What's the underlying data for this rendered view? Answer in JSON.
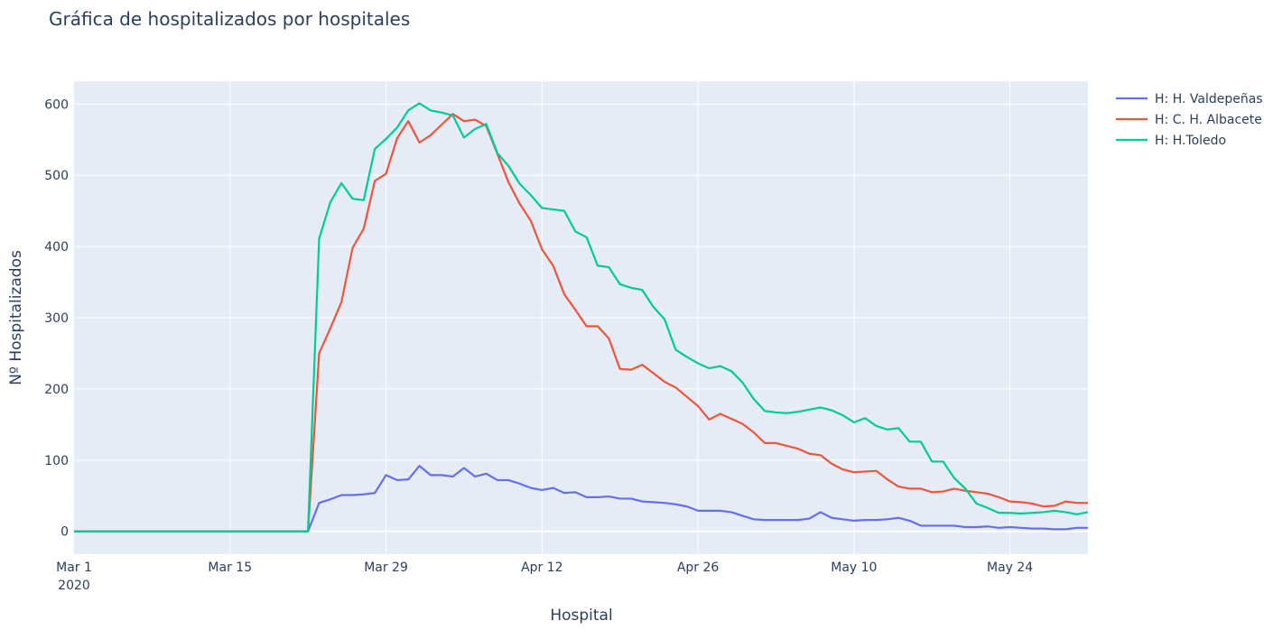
{
  "chart_data": {
    "type": "line",
    "title": "Gráfica de hospitalizados por hospitales",
    "xlabel": "Hospital",
    "ylabel": "Nº Hospitalizados",
    "x_start": "2020-03-01",
    "x_end": "2020-05-31",
    "xlim": [
      "2020-03-01",
      "2020-05-31"
    ],
    "ylim": [
      -32,
      632
    ],
    "x_ticks": [
      {
        "date": "2020-03-01",
        "label": "Mar 1",
        "sublabel": "2020"
      },
      {
        "date": "2020-03-15",
        "label": "Mar 15",
        "sublabel": ""
      },
      {
        "date": "2020-03-29",
        "label": "Mar 29",
        "sublabel": ""
      },
      {
        "date": "2020-04-12",
        "label": "Apr 12",
        "sublabel": ""
      },
      {
        "date": "2020-04-26",
        "label": "Apr 26",
        "sublabel": ""
      },
      {
        "date": "2020-05-10",
        "label": "May 10",
        "sublabel": ""
      },
      {
        "date": "2020-05-24",
        "label": "May 24",
        "sublabel": ""
      }
    ],
    "y_ticks": [
      0,
      100,
      200,
      300,
      400,
      500,
      600
    ],
    "grid": true,
    "legend_position": "top-right",
    "series": [
      {
        "name": "H: H. Valdepeñas",
        "color": "#636efa",
        "points": [
          [
            "2020-03-01",
            0
          ],
          [
            "2020-03-22",
            0
          ],
          [
            "2020-03-23",
            40
          ],
          [
            "2020-03-24",
            45
          ],
          [
            "2020-03-25",
            51
          ],
          [
            "2020-03-26",
            51
          ],
          [
            "2020-03-27",
            52
          ],
          [
            "2020-03-28",
            54
          ],
          [
            "2020-03-29",
            79
          ],
          [
            "2020-03-30",
            72
          ],
          [
            "2020-03-31",
            73
          ],
          [
            "2020-04-01",
            92
          ],
          [
            "2020-04-02",
            79
          ],
          [
            "2020-04-03",
            79
          ],
          [
            "2020-04-04",
            77
          ],
          [
            "2020-04-05",
            89
          ],
          [
            "2020-04-06",
            77
          ],
          [
            "2020-04-07",
            81
          ],
          [
            "2020-04-08",
            72
          ],
          [
            "2020-04-09",
            72
          ],
          [
            "2020-04-10",
            67
          ],
          [
            "2020-04-11",
            61
          ],
          [
            "2020-04-12",
            58
          ],
          [
            "2020-04-13",
            61
          ],
          [
            "2020-04-14",
            54
          ],
          [
            "2020-04-15",
            55
          ],
          [
            "2020-04-16",
            48
          ],
          [
            "2020-04-17",
            48
          ],
          [
            "2020-04-18",
            49
          ],
          [
            "2020-04-19",
            46
          ],
          [
            "2020-04-20",
            46
          ],
          [
            "2020-04-21",
            42
          ],
          [
            "2020-04-22",
            41
          ],
          [
            "2020-04-23",
            40
          ],
          [
            "2020-04-24",
            38
          ],
          [
            "2020-04-25",
            35
          ],
          [
            "2020-04-26",
            29
          ],
          [
            "2020-04-27",
            29
          ],
          [
            "2020-04-28",
            29
          ],
          [
            "2020-04-29",
            27
          ],
          [
            "2020-04-30",
            22
          ],
          [
            "2020-05-01",
            17
          ],
          [
            "2020-05-02",
            16
          ],
          [
            "2020-05-03",
            16
          ],
          [
            "2020-05-04",
            16
          ],
          [
            "2020-05-05",
            16
          ],
          [
            "2020-05-06",
            18
          ],
          [
            "2020-05-07",
            27
          ],
          [
            "2020-05-08",
            19
          ],
          [
            "2020-05-09",
            17
          ],
          [
            "2020-05-10",
            15
          ],
          [
            "2020-05-11",
            16
          ],
          [
            "2020-05-12",
            16
          ],
          [
            "2020-05-13",
            17
          ],
          [
            "2020-05-14",
            19
          ],
          [
            "2020-05-15",
            15
          ],
          [
            "2020-05-16",
            8
          ],
          [
            "2020-05-17",
            8
          ],
          [
            "2020-05-18",
            8
          ],
          [
            "2020-05-19",
            8
          ],
          [
            "2020-05-20",
            6
          ],
          [
            "2020-05-21",
            6
          ],
          [
            "2020-05-22",
            7
          ],
          [
            "2020-05-23",
            5
          ],
          [
            "2020-05-24",
            6
          ],
          [
            "2020-05-25",
            5
          ],
          [
            "2020-05-26",
            4
          ],
          [
            "2020-05-27",
            4
          ],
          [
            "2020-05-28",
            3
          ],
          [
            "2020-05-29",
            3
          ],
          [
            "2020-05-30",
            5
          ],
          [
            "2020-05-31",
            5
          ]
        ]
      },
      {
        "name": "H: C. H. Albacete",
        "color": "#ef553b",
        "points": [
          [
            "2020-03-01",
            0
          ],
          [
            "2020-03-22",
            0
          ],
          [
            "2020-03-23",
            250
          ],
          [
            "2020-03-24",
            285
          ],
          [
            "2020-03-25",
            322
          ],
          [
            "2020-03-26",
            398
          ],
          [
            "2020-03-27",
            425
          ],
          [
            "2020-03-28",
            492
          ],
          [
            "2020-03-29",
            502
          ],
          [
            "2020-03-30",
            552
          ],
          [
            "2020-03-31",
            576
          ],
          [
            "2020-04-01",
            546
          ],
          [
            "2020-04-02",
            556
          ],
          [
            "2020-04-03",
            571
          ],
          [
            "2020-04-04",
            586
          ],
          [
            "2020-04-05",
            576
          ],
          [
            "2020-04-06",
            578
          ],
          [
            "2020-04-07",
            569
          ],
          [
            "2020-04-08",
            530
          ],
          [
            "2020-04-09",
            490
          ],
          [
            "2020-04-10",
            460
          ],
          [
            "2020-04-11",
            436
          ],
          [
            "2020-04-12",
            396
          ],
          [
            "2020-04-13",
            373
          ],
          [
            "2020-04-14",
            333
          ],
          [
            "2020-04-15",
            311
          ],
          [
            "2020-04-16",
            288
          ],
          [
            "2020-04-17",
            288
          ],
          [
            "2020-04-18",
            271
          ],
          [
            "2020-04-19",
            228
          ],
          [
            "2020-04-20",
            227
          ],
          [
            "2020-04-21",
            234
          ],
          [
            "2020-04-22",
            222
          ],
          [
            "2020-04-23",
            210
          ],
          [
            "2020-04-24",
            202
          ],
          [
            "2020-04-25",
            189
          ],
          [
            "2020-04-26",
            176
          ],
          [
            "2020-04-27",
            157
          ],
          [
            "2020-04-28",
            165
          ],
          [
            "2020-04-29",
            158
          ],
          [
            "2020-04-30",
            151
          ],
          [
            "2020-05-01",
            139
          ],
          [
            "2020-05-02",
            124
          ],
          [
            "2020-05-03",
            124
          ],
          [
            "2020-05-04",
            120
          ],
          [
            "2020-05-05",
            116
          ],
          [
            "2020-05-06",
            109
          ],
          [
            "2020-05-07",
            107
          ],
          [
            "2020-05-08",
            95
          ],
          [
            "2020-05-09",
            87
          ],
          [
            "2020-05-10",
            83
          ],
          [
            "2020-05-11",
            84
          ],
          [
            "2020-05-12",
            85
          ],
          [
            "2020-05-13",
            73
          ],
          [
            "2020-05-14",
            63
          ],
          [
            "2020-05-15",
            60
          ],
          [
            "2020-05-16",
            60
          ],
          [
            "2020-05-17",
            55
          ],
          [
            "2020-05-18",
            56
          ],
          [
            "2020-05-19",
            60
          ],
          [
            "2020-05-20",
            57
          ],
          [
            "2020-05-21",
            55
          ],
          [
            "2020-05-22",
            53
          ],
          [
            "2020-05-23",
            48
          ],
          [
            "2020-05-24",
            42
          ],
          [
            "2020-05-25",
            41
          ],
          [
            "2020-05-26",
            39
          ],
          [
            "2020-05-27",
            35
          ],
          [
            "2020-05-28",
            36
          ],
          [
            "2020-05-29",
            42
          ],
          [
            "2020-05-30",
            40
          ],
          [
            "2020-05-31",
            40
          ]
        ]
      },
      {
        "name": "H: H.Toledo",
        "color": "#00cc96",
        "points": [
          [
            "2020-03-01",
            0
          ],
          [
            "2020-03-22",
            0
          ],
          [
            "2020-03-23",
            411
          ],
          [
            "2020-03-24",
            462
          ],
          [
            "2020-03-25",
            489
          ],
          [
            "2020-03-26",
            467
          ],
          [
            "2020-03-27",
            465
          ],
          [
            "2020-03-28",
            537
          ],
          [
            "2020-03-29",
            551
          ],
          [
            "2020-03-30",
            567
          ],
          [
            "2020-03-31",
            591
          ],
          [
            "2020-04-01",
            601
          ],
          [
            "2020-04-02",
            591
          ],
          [
            "2020-04-03",
            588
          ],
          [
            "2020-04-04",
            584
          ],
          [
            "2020-04-05",
            553
          ],
          [
            "2020-04-06",
            565
          ],
          [
            "2020-04-07",
            572
          ],
          [
            "2020-04-08",
            531
          ],
          [
            "2020-04-09",
            513
          ],
          [
            "2020-04-10",
            488
          ],
          [
            "2020-04-11",
            472
          ],
          [
            "2020-04-12",
            454
          ],
          [
            "2020-04-13",
            452
          ],
          [
            "2020-04-14",
            450
          ],
          [
            "2020-04-15",
            421
          ],
          [
            "2020-04-16",
            413
          ],
          [
            "2020-04-17",
            373
          ],
          [
            "2020-04-18",
            371
          ],
          [
            "2020-04-19",
            347
          ],
          [
            "2020-04-20",
            342
          ],
          [
            "2020-04-21",
            339
          ],
          [
            "2020-04-22",
            315
          ],
          [
            "2020-04-23",
            298
          ],
          [
            "2020-04-24",
            255
          ],
          [
            "2020-04-25",
            245
          ],
          [
            "2020-04-26",
            236
          ],
          [
            "2020-04-27",
            229
          ],
          [
            "2020-04-28",
            232
          ],
          [
            "2020-04-29",
            225
          ],
          [
            "2020-04-30",
            209
          ],
          [
            "2020-05-01",
            186
          ],
          [
            "2020-05-02",
            169
          ],
          [
            "2020-05-03",
            167
          ],
          [
            "2020-05-04",
            166
          ],
          [
            "2020-05-05",
            168
          ],
          [
            "2020-05-06",
            171
          ],
          [
            "2020-05-07",
            174
          ],
          [
            "2020-05-08",
            170
          ],
          [
            "2020-05-09",
            163
          ],
          [
            "2020-05-10",
            153
          ],
          [
            "2020-05-11",
            159
          ],
          [
            "2020-05-12",
            148
          ],
          [
            "2020-05-13",
            143
          ],
          [
            "2020-05-14",
            145
          ],
          [
            "2020-05-15",
            126
          ],
          [
            "2020-05-16",
            126
          ],
          [
            "2020-05-17",
            98
          ],
          [
            "2020-05-18",
            98
          ],
          [
            "2020-05-19",
            75
          ],
          [
            "2020-05-20",
            60
          ],
          [
            "2020-05-21",
            39
          ],
          [
            "2020-05-22",
            33
          ],
          [
            "2020-05-23",
            26
          ],
          [
            "2020-05-24",
            26
          ],
          [
            "2020-05-25",
            25
          ],
          [
            "2020-05-26",
            26
          ],
          [
            "2020-05-27",
            27
          ],
          [
            "2020-05-28",
            29
          ],
          [
            "2020-05-29",
            27
          ],
          [
            "2020-05-30",
            24
          ],
          [
            "2020-05-31",
            27
          ]
        ]
      }
    ]
  }
}
